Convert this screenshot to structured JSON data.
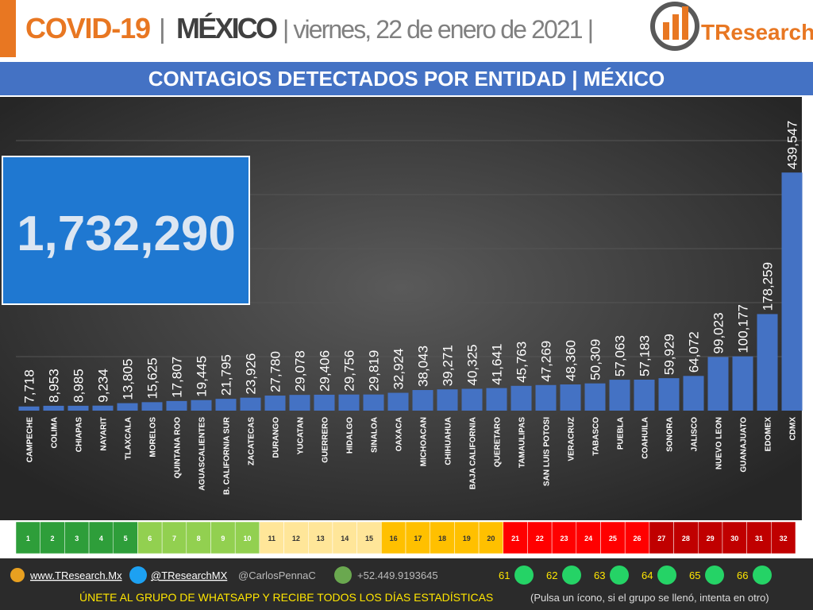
{
  "header": {
    "title": "COVID-19",
    "separator": "|",
    "country": "MÉXICO",
    "date": "| viernes, 22 de enero de 2021 |",
    "logo": "TResearch"
  },
  "chart_data": {
    "type": "bar",
    "title": "CONTAGIOS DETECTADOS POR ENTIDAD | MÉXICO",
    "annotation": "1,732,290",
    "categories": [
      "CAMPECHE",
      "COLIMA",
      "CHIAPAS",
      "NAYARIT",
      "TLAXCALA",
      "MORELOS",
      "QUINTANA ROO",
      "AGUASCALIENTES",
      "B. CALIFORNIA SUR",
      "ZACATECAS",
      "DURANGO",
      "YUCATAN",
      "GUERRERO",
      "HIDALGO",
      "SINALOA",
      "OAXACA",
      "MICHOACAN",
      "CHIHUAHUA",
      "BAJA CALIFORNIA",
      "QUERETARO",
      "TAMAULIPAS",
      "SAN LUIS POTOSI",
      "VERACRUZ",
      "TABASCO",
      "PUEBLA",
      "COAHUILA",
      "SONORA",
      "JALISCO",
      "NUEVO LEON",
      "GUANAJUATO",
      "EDOMEX",
      "CDMX"
    ],
    "values": [
      7718,
      8953,
      8985,
      9234,
      13805,
      15625,
      17807,
      19445,
      21795,
      23926,
      27780,
      29078,
      29406,
      29756,
      29819,
      32924,
      38043,
      39271,
      40325,
      41641,
      45763,
      47269,
      48360,
      50309,
      57063,
      57183,
      59929,
      64072,
      99023,
      100177,
      178259,
      439547
    ],
    "value_labels": [
      "7,718",
      "8,953",
      "8,985",
      "9,234",
      "13,805",
      "15,625",
      "17,807",
      "19,445",
      "21,795",
      "23,926",
      "27,780",
      "29,078",
      "29,406",
      "29,756",
      "29,819",
      "32,924",
      "38,043",
      "39,271",
      "40,325",
      "41,641",
      "45,763",
      "47,269",
      "48,360",
      "50,309",
      "57,063",
      "57,183",
      "59,929",
      "64,072",
      "99,023",
      "100,177",
      "178,259",
      "439,547"
    ],
    "color": "#4472c4",
    "ylim": [
      0,
      500000
    ]
  },
  "ranking": [
    {
      "numbers": [
        1,
        2,
        3,
        4,
        5
      ],
      "color": "#2e9e3a"
    },
    {
      "numbers": [
        6,
        7,
        8,
        9,
        10
      ],
      "color": "#92d050"
    },
    {
      "numbers": [
        11,
        12,
        13,
        14,
        15
      ],
      "color": "#ffe699"
    },
    {
      "numbers": [
        16,
        17,
        18,
        19,
        20
      ],
      "color": "#ffc000"
    },
    {
      "numbers": [
        21,
        22,
        23,
        24,
        25,
        26
      ],
      "color": "#ff0000"
    },
    {
      "numbers": [
        27,
        28,
        29,
        30,
        31,
        32
      ],
      "color": "#c00000"
    }
  ],
  "footer": {
    "web": "www.TResearch.Mx",
    "twitter": "@TResearchMX",
    "twitter2": "@CarlosPennaC",
    "phone": "+52.449.9193645",
    "groups": [
      61,
      62,
      63,
      64,
      65,
      66
    ],
    "cta": "ÚNETE AL GRUPO DE WHATSAPP Y RECIBE TODOS LOS DÍAS ESTADÍSTICAS",
    "note": "(Pulsa un ícono, si el grupo se llenó, intenta en otro)"
  }
}
